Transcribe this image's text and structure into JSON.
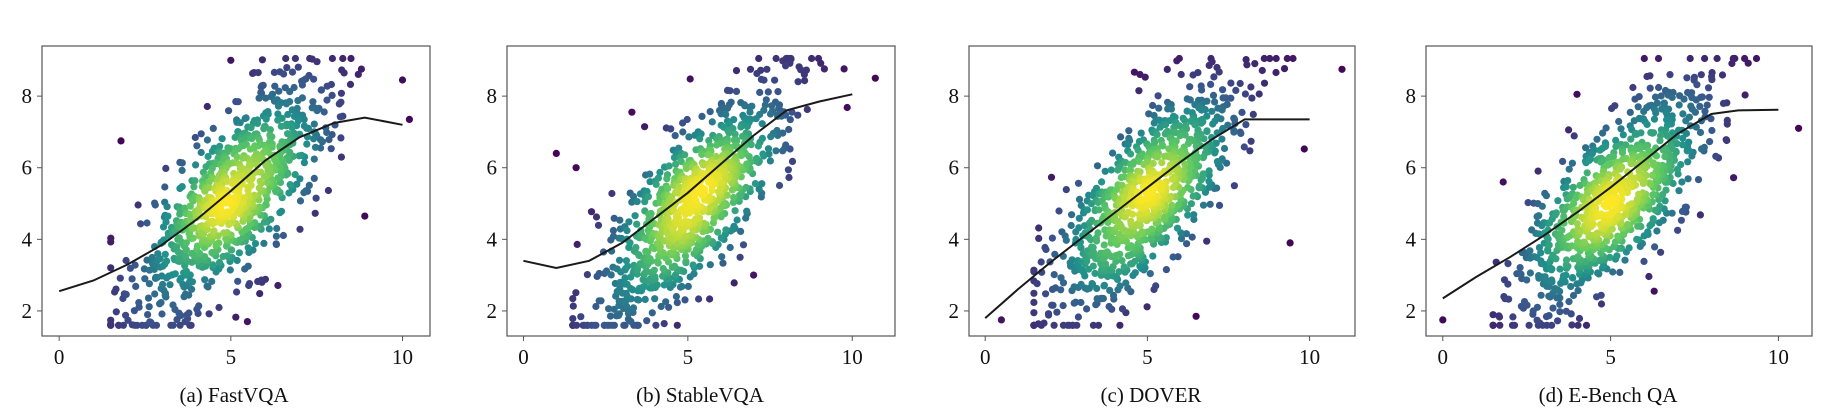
{
  "figure": {
    "panels": [
      {
        "caption": "(a) FastVQA"
      },
      {
        "caption": "(b) StableVQA"
      },
      {
        "caption": "(c) DOVER"
      },
      {
        "caption": "(d) E-Bench QA"
      }
    ]
  },
  "colors": {
    "fit_line": "#1a1a1a",
    "frame": "#555555",
    "colormap": [
      "#440154",
      "#3b528b",
      "#21918c",
      "#5ec962",
      "#fde725"
    ]
  },
  "chart_data": [
    {
      "type": "scatter",
      "title": "(a) FastVQA",
      "xlabel": "",
      "ylabel": "",
      "xlim": [
        -0.5,
        10.8
      ],
      "ylim": [
        1.3,
        9.4
      ],
      "xticks": [
        0,
        5,
        10
      ],
      "yticks": [
        2,
        4,
        6,
        8
      ],
      "color_encoding": "point density (viridis)",
      "n_points": 900,
      "cloud": {
        "x_mean": 5.1,
        "x_sd": 1.45,
        "slope": 0.86,
        "intercept": 0.85,
        "residual_sd": 1.15
      },
      "outliers": [
        {
          "x": 5.0,
          "y": 9.0
        },
        {
          "x": 1.8,
          "y": 6.75
        },
        {
          "x": 10.2,
          "y": 7.35
        },
        {
          "x": 10.0,
          "y": 8.45
        },
        {
          "x": 8.9,
          "y": 4.65
        }
      ],
      "fit_line": {
        "x": [
          0,
          1.0,
          2.0,
          3.0,
          4.0,
          5.0,
          6.0,
          7.0,
          8.0,
          8.9,
          10.0
        ],
        "y": [
          2.55,
          2.85,
          3.3,
          3.85,
          4.55,
          5.35,
          6.2,
          6.85,
          7.25,
          7.4,
          7.2
        ]
      }
    },
    {
      "type": "scatter",
      "title": "(b) StableVQA",
      "xlabel": "",
      "ylabel": "",
      "xlim": [
        -0.5,
        11.3
      ],
      "ylim": [
        1.3,
        9.4
      ],
      "xticks": [
        0,
        5,
        10
      ],
      "yticks": [
        2,
        4,
        6,
        8
      ],
      "color_encoding": "point density (viridis)",
      "n_points": 900,
      "cloud": {
        "x_mean": 5.2,
        "x_sd": 1.45,
        "slope": 0.9,
        "intercept": 0.35,
        "residual_sd": 1.1
      },
      "outliers": [
        {
          "x": 1.0,
          "y": 6.4
        },
        {
          "x": 3.3,
          "y": 7.55
        },
        {
          "x": 10.7,
          "y": 8.5
        },
        {
          "x": 7.0,
          "y": 3.0
        },
        {
          "x": 1.6,
          "y": 6.0
        }
      ],
      "fit_line": {
        "x": [
          0,
          1.0,
          2.0,
          3.0,
          4.0,
          5.0,
          6.0,
          7.0,
          8.0,
          9.0,
          10.0
        ],
        "y": [
          3.4,
          3.2,
          3.4,
          3.9,
          4.6,
          5.3,
          6.1,
          6.9,
          7.6,
          7.85,
          8.05
        ]
      }
    },
    {
      "type": "scatter",
      "title": "(c) DOVER",
      "xlabel": "",
      "ylabel": "",
      "xlim": [
        -0.5,
        11.4
      ],
      "ylim": [
        1.3,
        9.4
      ],
      "xticks": [
        0,
        5,
        10
      ],
      "yticks": [
        2,
        4,
        6,
        8
      ],
      "color_encoding": "point density (viridis)",
      "n_points": 900,
      "cloud": {
        "x_mean": 5.0,
        "x_sd": 1.5,
        "slope": 0.85,
        "intercept": 0.9,
        "residual_sd": 1.15
      },
      "outliers": [
        {
          "x": 6.5,
          "y": 1.85
        },
        {
          "x": 11.0,
          "y": 8.75
        },
        {
          "x": 9.4,
          "y": 3.9
        },
        {
          "x": 0.5,
          "y": 1.75
        }
      ],
      "fit_line": {
        "x": [
          0,
          1.0,
          2.0,
          3.0,
          4.0,
          5.0,
          6.0,
          7.0,
          8.0,
          9.0,
          10.0
        ],
        "y": [
          1.8,
          2.6,
          3.35,
          4.05,
          4.75,
          5.45,
          6.15,
          6.8,
          7.35,
          7.35,
          7.35
        ]
      }
    },
    {
      "type": "scatter",
      "title": "(d) E-Bench QA",
      "xlabel": "",
      "ylabel": "",
      "xlim": [
        -0.5,
        11.0
      ],
      "ylim": [
        1.3,
        9.4
      ],
      "xticks": [
        0,
        5,
        10
      ],
      "yticks": [
        2,
        4,
        6,
        8
      ],
      "color_encoding": "point density (viridis)",
      "n_points": 900,
      "cloud": {
        "x_mean": 5.1,
        "x_sd": 1.45,
        "slope": 0.88,
        "intercept": 0.7,
        "residual_sd": 1.1
      },
      "outliers": [
        {
          "x": 4.0,
          "y": 8.05
        },
        {
          "x": 0.0,
          "y": 1.75
        },
        {
          "x": 10.6,
          "y": 7.1
        },
        {
          "x": 6.3,
          "y": 2.55
        },
        {
          "x": 1.8,
          "y": 5.6
        }
      ],
      "fit_line": {
        "x": [
          0,
          1.0,
          2.0,
          3.0,
          4.0,
          5.0,
          6.0,
          7.0,
          8.0,
          8.8,
          10.0
        ],
        "y": [
          2.35,
          2.95,
          3.5,
          4.1,
          4.75,
          5.45,
          6.2,
          6.95,
          7.5,
          7.6,
          7.62
        ]
      }
    }
  ]
}
